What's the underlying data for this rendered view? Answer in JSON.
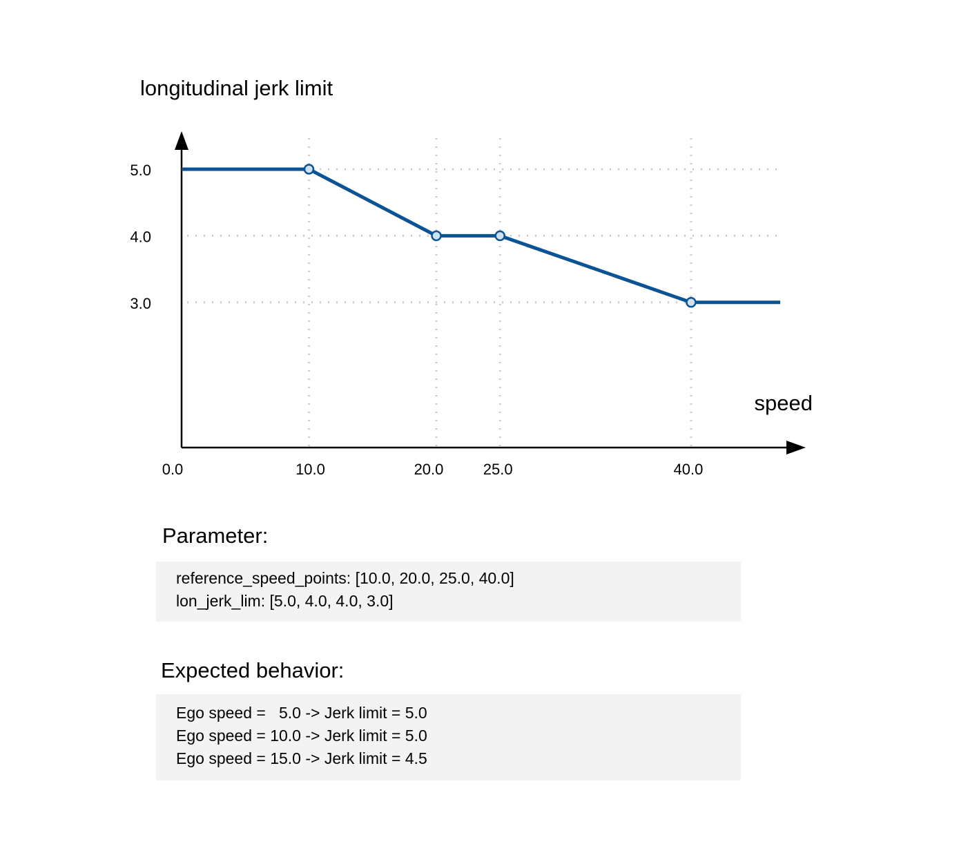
{
  "chart_data": {
    "type": "line",
    "title": "longitudinal jerk limit",
    "xlabel": "speed",
    "ylabel": "",
    "x": [
      0.0,
      10.0,
      20.0,
      25.0,
      40.0,
      47.0
    ],
    "y": [
      5.0,
      5.0,
      4.0,
      4.0,
      3.0,
      3.0
    ],
    "markers_at": [
      10.0,
      20.0,
      25.0,
      40.0
    ],
    "xticks": [
      "0.0",
      "10.0",
      "20.0",
      "25.0",
      "40.0"
    ],
    "xtick_values": [
      0,
      10,
      20,
      25,
      40
    ],
    "yticks": [
      "5.0",
      "4.0",
      "3.0"
    ],
    "ytick_values": [
      5,
      4,
      3
    ],
    "xlim": [
      0,
      49
    ],
    "ylim": [
      0.82,
      5.57
    ],
    "grid": "dotted",
    "line_color": "#0b5394",
    "marker_fill": "#cfe2f3"
  },
  "parameter": {
    "heading": "Parameter:",
    "lines": [
      "reference_speed_points: [10.0, 20.0, 25.0, 40.0]",
      "lon_jerk_lim: [5.0, 4.0, 4.0, 3.0]"
    ]
  },
  "expected": {
    "heading": "Expected behavior:",
    "lines": [
      "Ego speed =   5.0 -> Jerk limit = 5.0",
      "Ego speed = 10.0 -> Jerk limit = 5.0",
      "Ego speed = 15.0 -> Jerk limit = 4.5"
    ]
  }
}
